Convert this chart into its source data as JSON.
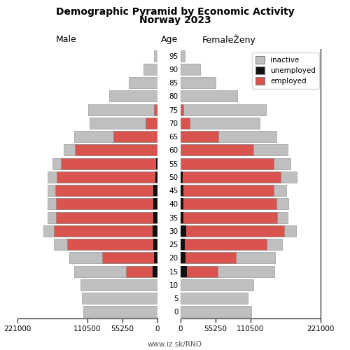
{
  "title_line1": "Demographic Pyramid by Economic Activity",
  "title_line2": "Norway 2023",
  "label_male": "Male",
  "label_female": "FemaleŽeny",
  "label_age": "Age",
  "footer": "www.iz.sk/RNO",
  "colors": {
    "inactive": "#c0bfc0",
    "unemployed": "#111111",
    "employed": "#d9534f"
  },
  "age_groups": [
    0,
    5,
    10,
    15,
    20,
    25,
    30,
    35,
    40,
    45,
    50,
    55,
    60,
    65,
    70,
    75,
    80,
    85,
    90,
    95
  ],
  "male_inactive": [
    117000,
    119000,
    122000,
    82000,
    52000,
    20000,
    16000,
    14000,
    14000,
    13000,
    14000,
    13000,
    18000,
    62000,
    88000,
    103000,
    76000,
    45000,
    22000,
    5000
  ],
  "male_unemployed": [
    0,
    0,
    0,
    8000,
    5000,
    7000,
    8000,
    7000,
    7000,
    7000,
    3000,
    2000,
    0,
    0,
    0,
    0,
    0,
    0,
    0,
    0
  ],
  "male_employed": [
    0,
    0,
    0,
    42000,
    82000,
    136000,
    156000,
    153000,
    153000,
    154000,
    156000,
    151000,
    130000,
    70000,
    19000,
    6000,
    0,
    0,
    0,
    0
  ],
  "female_inactive": [
    112000,
    107000,
    115000,
    90000,
    62000,
    24000,
    19000,
    17000,
    19000,
    19000,
    25000,
    26000,
    55000,
    92000,
    110000,
    130000,
    90000,
    56000,
    31000,
    7000
  ],
  "female_unemployed": [
    0,
    0,
    0,
    10000,
    8000,
    7000,
    9000,
    5000,
    5000,
    5000,
    4000,
    0,
    0,
    0,
    0,
    0,
    0,
    0,
    0,
    0
  ],
  "female_employed": [
    0,
    0,
    0,
    49000,
    80000,
    130000,
    155000,
    148000,
    147000,
    143000,
    155000,
    148000,
    115000,
    60000,
    15000,
    5000,
    0,
    0,
    0,
    0
  ],
  "xlim": 221000,
  "bar_height": 0.82
}
